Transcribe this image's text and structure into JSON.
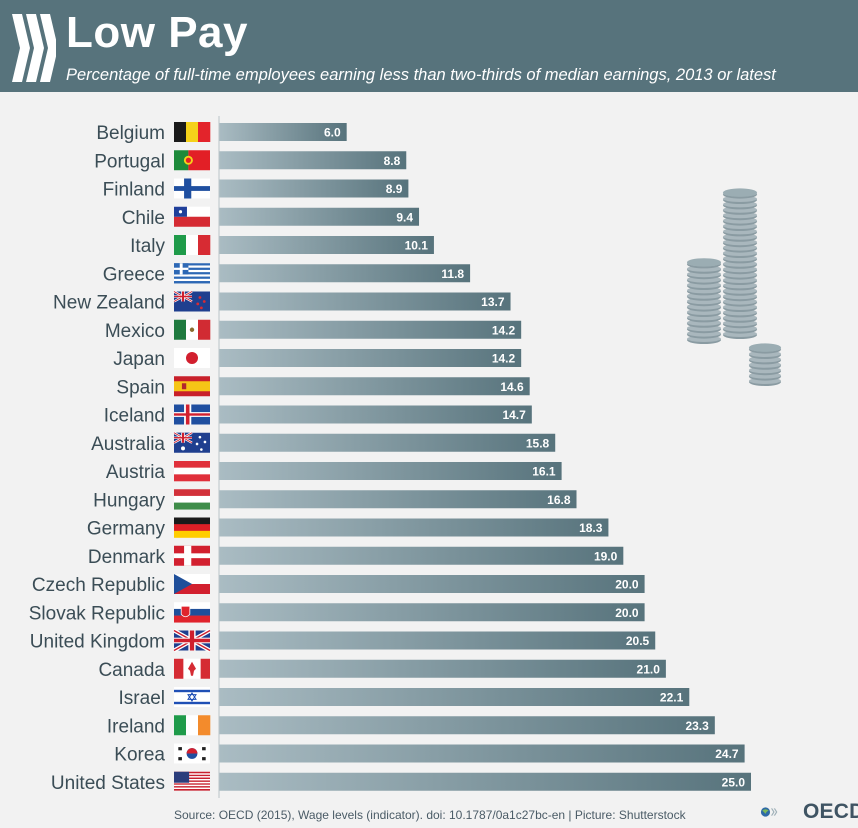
{
  "header": {
    "title": "Low Pay",
    "subtitle": "Percentage of full-time employees earning less than two-thirds of median earnings, 2013 or latest"
  },
  "footer": {
    "source": "Source: OECD (2015), Wage levels (indicator). doi: 10.1787/0a1c27bc-en | Picture: Shutterstock",
    "logo_text": "OECD"
  },
  "colors": {
    "header": "#57737c",
    "bar_start": "#aabcc3",
    "bar_end": "#57737c",
    "label": "#3b4d56"
  },
  "chart_data": {
    "type": "bar",
    "orientation": "horizontal",
    "categories": [
      "Belgium",
      "Portugal",
      "Finland",
      "Chile",
      "Italy",
      "Greece",
      "New Zealand",
      "Mexico",
      "Japan",
      "Spain",
      "Iceland",
      "Australia",
      "Austria",
      "Hungary",
      "Germany",
      "Denmark",
      "Czech Republic",
      "Slovak Republic",
      "United Kingdom",
      "Canada",
      "Israel",
      "Ireland",
      "Korea",
      "United States"
    ],
    "values": [
      6.0,
      8.8,
      8.9,
      9.4,
      10.1,
      11.8,
      13.7,
      14.2,
      14.2,
      14.6,
      14.7,
      15.8,
      16.1,
      16.8,
      18.3,
      19.0,
      20.0,
      20.0,
      20.5,
      21.0,
      22.1,
      23.3,
      24.7,
      25.0
    ],
    "value_labels": [
      "6.0",
      "8.8",
      "8.9",
      "9.4",
      "10.1",
      "11.8",
      "13.7",
      "14.2",
      "14.2",
      "14.6",
      "14.7",
      "15.8",
      "16.1",
      "16.8",
      "18.3",
      "19.0",
      "20.0",
      "20.0",
      "20.5",
      "21.0",
      "22.1",
      "23.3",
      "24.7",
      "25.0"
    ],
    "flags": [
      "belgium",
      "portugal",
      "finland",
      "chile",
      "italy",
      "greece",
      "new-zealand",
      "mexico",
      "japan",
      "spain",
      "iceland",
      "australia",
      "austria",
      "hungary",
      "germany",
      "denmark",
      "czech-republic",
      "slovak-republic",
      "united-kingdom",
      "canada",
      "israel",
      "ireland",
      "korea",
      "united-states"
    ],
    "xlim": [
      0,
      25
    ],
    "grid": false,
    "legend": "none"
  }
}
